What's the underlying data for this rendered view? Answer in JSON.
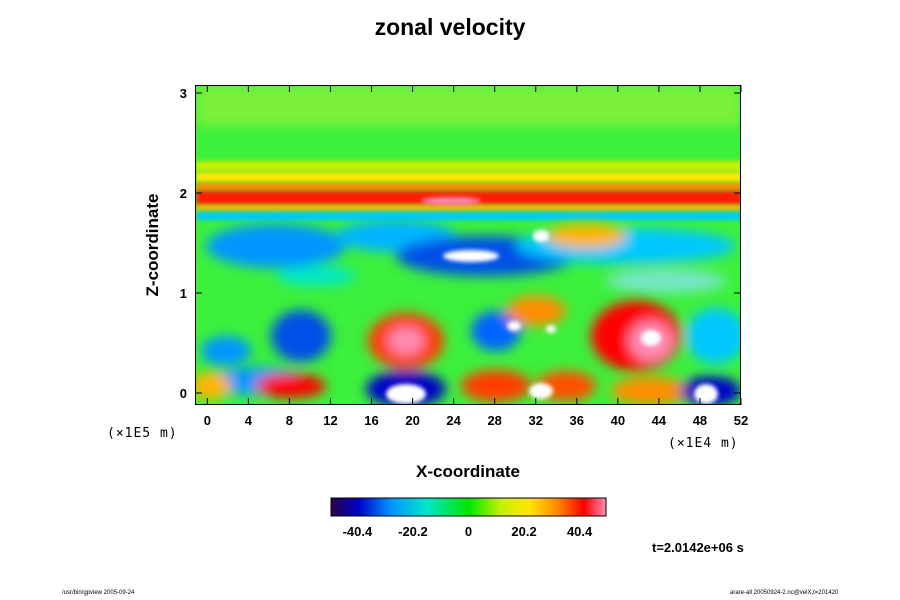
{
  "chart_data": {
    "type": "heatmap",
    "title": "zonal velocity",
    "xlabel": "X-coordinate",
    "ylabel": "Z-coordinate",
    "x_ticks": [
      "0",
      "4",
      "8",
      "12",
      "16",
      "20",
      "24",
      "28",
      "32",
      "36",
      "40",
      "44",
      "48",
      "52"
    ],
    "y_ticks": [
      "0",
      "1",
      "2",
      "3"
    ],
    "xlim": [
      -1.2,
      52
    ],
    "ylim": [
      -0.12,
      3.08
    ],
    "x_unit": "(×1E4 m)",
    "y_unit": "(×1E5 m)",
    "colorbar": {
      "ticks": [
        "-40.4",
        "-20.2",
        "0",
        "20.2",
        "40.4"
      ],
      "range": [
        -50,
        50
      ]
    },
    "time_label": "t=2.0142e+06 s",
    "colors": {
      "colormap": [
        "#2a0040",
        "#0000c8",
        "#0096ff",
        "#00e6c8",
        "#00e600",
        "#c8f000",
        "#ffe600",
        "#ff8c00",
        "#ff0000",
        "#ff8cb4"
      ],
      "background_field": "#3cf03c"
    }
  },
  "footer": {
    "left": "/usr/bin/gpview 2005-09-24",
    "right": "arare-all 20050924-2.nc@velX,t=201420"
  }
}
